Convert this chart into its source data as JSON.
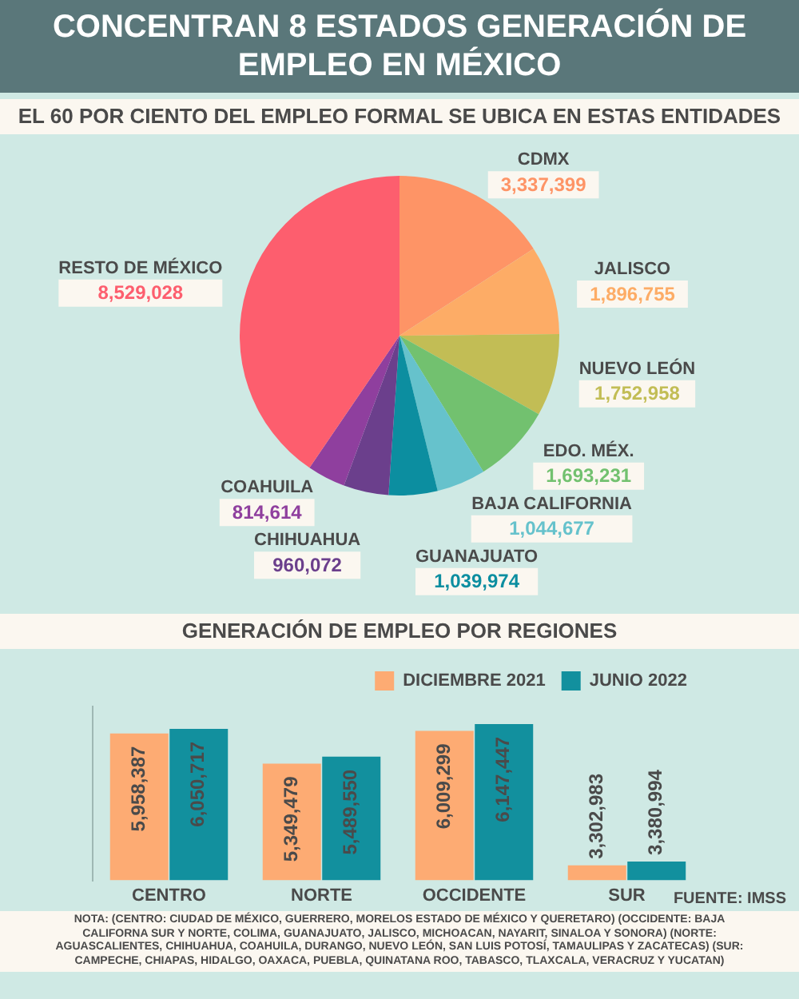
{
  "chart_data": [
    {
      "type": "pie",
      "title": "CONCENTRAN 8 ESTADOS GENERACIÓN DE EMPLEO EN MÉXICO",
      "subtitle": "EL 60 POR CIENTO DEL EMPLEO FORMAL SE UBICA EN ESTAS ENTIDADES",
      "categories": [
        "CDMX",
        "JALISCO",
        "NUEVO LEÓN",
        "EDO. MÉX.",
        "BAJA CALIFORNIA",
        "GUANAJUATO",
        "CHIHUAHUA",
        "COAHUILA",
        "RESTO DE MÉXICO"
      ],
      "values": [
        3337399,
        1896755,
        1752958,
        1693231,
        1044677,
        1039974,
        960072,
        814614,
        8529028
      ],
      "colors": [
        "#fe9466",
        "#fdac66",
        "#c2bd55",
        "#72c16f",
        "#66c2cc",
        "#0c8ea0",
        "#6b3f8c",
        "#8f3f9e",
        "#fd5e6e"
      ],
      "value_labels": [
        "3,337,399",
        "1,896,755",
        "1,752,958",
        "1,693,231",
        "1,044,677",
        "1,039,974",
        "960,072",
        "814,614",
        "8,529,028"
      ]
    },
    {
      "type": "bar",
      "title": "GENERACIÓN DE EMPLEO POR REGIONES",
      "categories": [
        "CENTRO",
        "NORTE",
        "OCCIDENTE",
        "SUR"
      ],
      "series": [
        {
          "name": "DICIEMBRE 2021",
          "color": "#fdab73",
          "values": [
            5958387,
            5349479,
            6009299,
            3302983
          ],
          "value_labels": [
            "5,958,387",
            "5,349,479",
            "6,009,299",
            "3,302,983"
          ]
        },
        {
          "name": "JUNIO 2022",
          "color": "#12909e",
          "values": [
            6050717,
            5489550,
            6147447,
            3380994
          ],
          "value_labels": [
            "6,050,717",
            "5,489,550",
            "6,147,447",
            "3,380,994"
          ]
        }
      ],
      "ylim": [
        3000000,
        6500000
      ],
      "tick_labels": "x",
      "legend": "top right",
      "grid": false,
      "annotations": [
        "FUENTE: IMSS",
        "NOTA: (CENTRO: CIUDAD DE MÉXICO, GUERRERO, MORELOS ESTADO DE MÉXICO Y QUERETARO) (OCCIDENTE: BAJA CALIFORNA SUR Y NORTE, COLIMA, GUANAJUATO, JALISCO, MICHOACAN, NAYARIT, SINALOA Y SONORA) (NORTE: AGUASCALIENTES, CHIHUAHUA, COAHUILA, DURANGO, NUEVO LEÓN, SAN LUIS POTOSÍ, TAMAULIPAS Y ZACATECAS) (SUR: CAMPECHE, CHIAPAS, HIDALGO, OAXACA, PUEBLA, QUINATANA ROO, TABASCO, TLAXCALA, VERACRUZ Y YUCATAN)"
      ]
    }
  ]
}
